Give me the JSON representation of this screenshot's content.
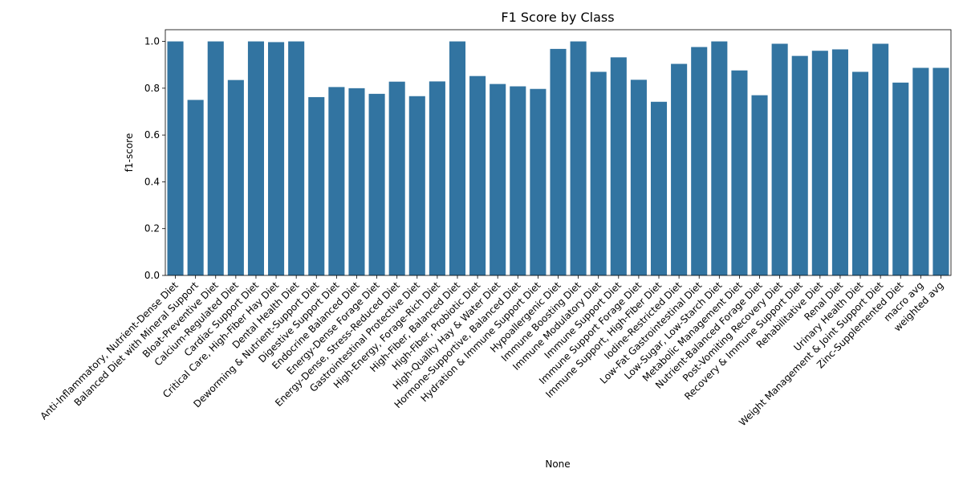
{
  "chart_data": {
    "type": "bar",
    "title": "F1 Score by Class",
    "xlabel": "None",
    "ylabel": "f1-score",
    "ylim": [
      0,
      1.05
    ],
    "yticks": [
      "0.0",
      "0.2",
      "0.4",
      "0.6",
      "0.8",
      "1.0"
    ],
    "ytick_values": [
      0,
      0.2,
      0.4,
      0.6,
      0.8,
      1.0
    ],
    "grid": false,
    "bar_color": "#3274a1",
    "categories": [
      "Anti-Inflammatory, Nutrient-Dense Diet",
      "Balanced Diet with Mineral Support",
      "Bloat-Preventive Diet",
      "Calcium-Regulated Diet",
      "Cardiac Support Diet",
      "Critical Care, High-Fiber Hay Diet",
      "Dental Health Diet",
      "Deworming & Nutrient-Support Diet",
      "Digestive Support Diet",
      "Endocrine Balanced Diet",
      "Energy-Dense Forage Diet",
      "Energy-Dense, Stress-Reduced Diet",
      "Gastrointestinal Protective Diet",
      "High-Energy, Forage-Rich Diet",
      "High-Fiber, Balanced Diet",
      "High-Fiber, Probiotic Diet",
      "High-Quality Hay & Water Diet",
      "Hormone-Supportive, Balanced Diet",
      "Hydration & Immune Support Diet",
      "Hypoallergenic Diet",
      "Immune Boosting Diet",
      "Immune Modulatory Diet",
      "Immune Support Diet",
      "Immune Support Forage Diet",
      "Immune Support, High-Fiber Diet",
      "Iodine-Restricted Diet",
      "Low-Fat Gastrointestinal Diet",
      "Low-Sugar, Low-Starch Diet",
      "Metabolic Management Diet",
      "Nutrient-Balanced Forage Diet",
      "Post-Vomiting Recovery Diet",
      "Recovery & Immune Support Diet",
      "Rehabilitative Diet",
      "Renal Diet",
      "Urinary Health Diet",
      "Weight Management & Joint Support Diet",
      "Zinc-Supplemented Diet",
      "macro avg",
      "weighted avg"
    ],
    "values": [
      1.0,
      0.75,
      1.0,
      0.835,
      1.0,
      0.997,
      1.0,
      0.762,
      0.805,
      0.8,
      0.776,
      0.828,
      0.766,
      0.829,
      1.0,
      0.852,
      0.818,
      0.808,
      0.797,
      0.968,
      1.0,
      0.87,
      0.932,
      0.836,
      0.742,
      0.904,
      0.976,
      1.0,
      0.876,
      0.77,
      0.99,
      0.938,
      0.96,
      0.966,
      0.87,
      0.99,
      0.824,
      0.887,
      0.887
    ]
  }
}
